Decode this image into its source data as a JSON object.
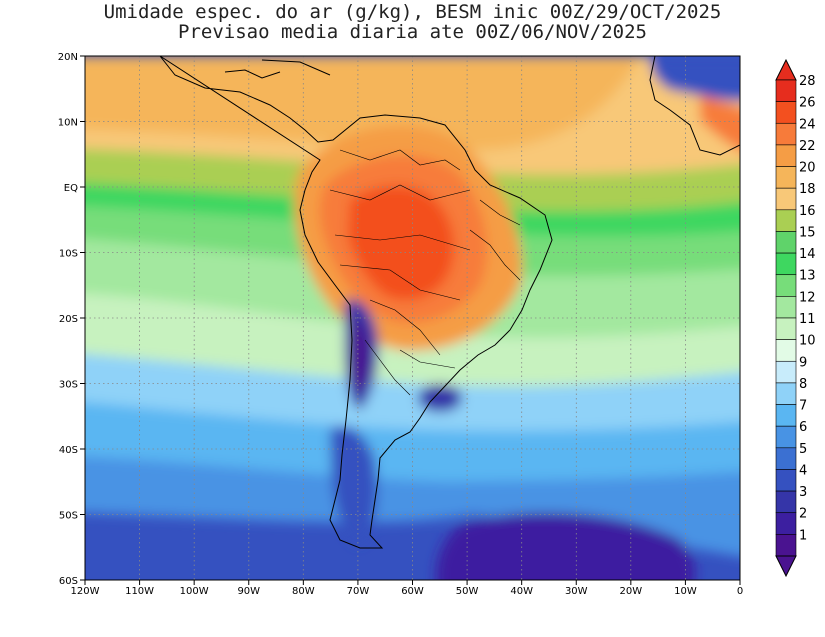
{
  "title": {
    "line1": "Umidade espec. do ar (g/kg), BESM inic 00Z/29/OCT/2025",
    "line2": "Previsao media diaria ate 00Z/06/NOV/2025"
  },
  "map": {
    "lon_range": [
      -120,
      0
    ],
    "lat_range": [
      -60,
      20
    ],
    "grid": "dotted",
    "y_ticks": [
      "20N",
      "10N",
      "EQ",
      "10S",
      "20S",
      "30S",
      "40S",
      "50S",
      "60S"
    ],
    "x_ticks": [
      "120W",
      "110W",
      "100W",
      "90W",
      "80W",
      "70W",
      "60W",
      "50W",
      "40W",
      "30W",
      "20W",
      "10W",
      "0"
    ]
  },
  "colorbar": {
    "levels": [
      "28",
      "26",
      "24",
      "22",
      "20",
      "18",
      "16",
      "15",
      "14",
      "13",
      "12",
      "11",
      "10",
      "9",
      "8",
      "7",
      "6",
      "5",
      "4",
      "3",
      "2",
      "1"
    ],
    "colors": [
      "#e62d1e",
      "#f3501f",
      "#f77b3a",
      "#f59d45",
      "#f5b55a",
      "#f8c878",
      "#aacf53",
      "#5fd36a",
      "#3ed760",
      "#77dd7a",
      "#a3e89f",
      "#c7f2bf",
      "#e2fbe6",
      "#c8ecfb",
      "#8fd2f8",
      "#5ab6f2",
      "#4893e4",
      "#3b70d2",
      "#3551c0",
      "#3535a8",
      "#3c1fa0",
      "#4a1390"
    ]
  }
}
